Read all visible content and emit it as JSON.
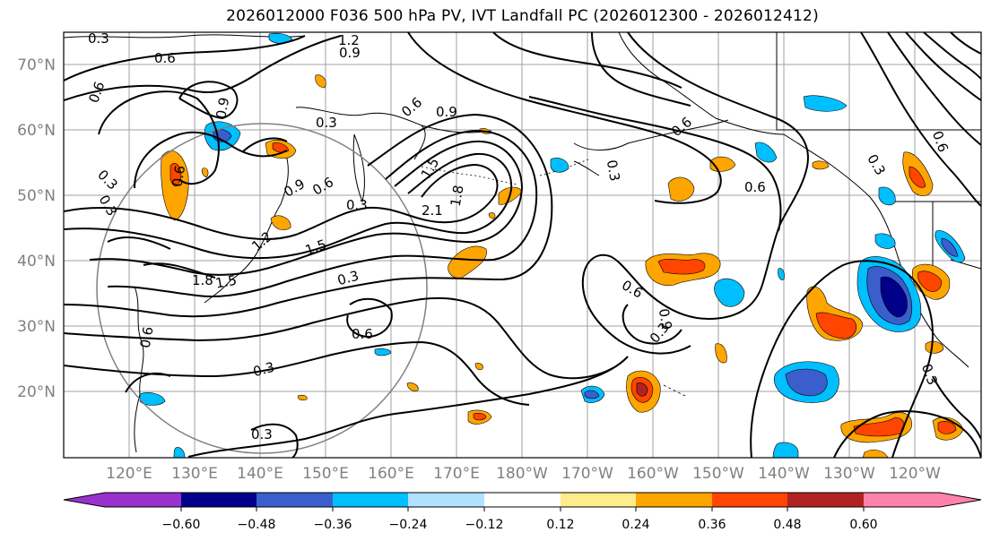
{
  "title": "2026012000 F036 500 hPa PV, IVT Landfall PC (2026012300 - 2026012412)",
  "lat_labels": [
    "70°N",
    "60°N",
    "50°N",
    "40°N",
    "30°N",
    "20°N"
  ],
  "lon_labels": [
    "120°E",
    "130°E",
    "140°E",
    "150°E",
    "160°E",
    "170°E",
    "180°W",
    "170°W",
    "160°W",
    "150°W",
    "140°W",
    "130°W",
    "120°W"
  ],
  "contour_labels": [
    "0.3",
    "0.6",
    "1.2",
    "0.9",
    "0.6",
    "0.9",
    "0.3",
    "0.9",
    "0.6",
    "0.3",
    "0.6",
    "0.9",
    "0.6",
    "0.3",
    "1.5",
    "2.1",
    "1.8",
    "0.3",
    "1.2",
    "1.5",
    "1.8",
    "1.5",
    "0.3",
    "0.6",
    "0.3",
    "0.6",
    "0.3",
    "0.6",
    "0.9",
    "0.6",
    "0.3",
    "0.6",
    "0.3",
    "0.3",
    "0.6",
    "0.3"
  ],
  "colorbar": {
    "colors": [
      "#9932cc",
      "#00008b",
      "#3a5fcd",
      "#00bfff",
      "#b0e2ff",
      "#ffffff",
      "#ffec8b",
      "#ffa500",
      "#ff4500",
      "#b22222",
      "#ff82ab"
    ],
    "tick_labels": [
      "−0.60",
      "−0.48",
      "−0.36",
      "−0.24",
      "−0.12",
      "0.12",
      "0.24",
      "0.36",
      "0.48",
      "0.60"
    ]
  },
  "shading_colors": {
    "pos1": "#ffec8b",
    "pos2": "#ffa500",
    "pos3": "#ff4500",
    "pos4": "#b22222",
    "neg1": "#b0e2ff",
    "neg2": "#00bfff",
    "neg3": "#3a5fcd",
    "neg4": "#00008b"
  }
}
